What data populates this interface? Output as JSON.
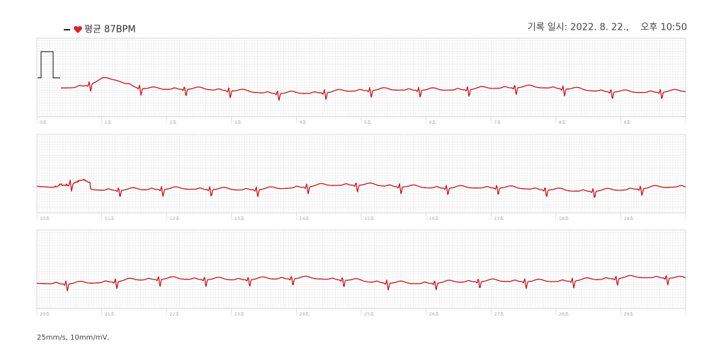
{
  "header": {
    "legend_label": "평균 87BPM",
    "record_time": "기록 일시: 2022. 8. 22.,    오후 10:50"
  },
  "strips": [
    {
      "time_labels": [
        "0초",
        "1초",
        "2초",
        "3초",
        "4초",
        "5초",
        "6초",
        "7초",
        "8초",
        "9초"
      ]
    },
    {
      "time_labels": [
        "10초",
        "11초",
        "12초",
        "13초",
        "14초",
        "15초",
        "16초",
        "17초",
        "18초",
        "19초"
      ]
    },
    {
      "time_labels": [
        "20초",
        "21초",
        "22초",
        "23초",
        "24초",
        "25초",
        "26초",
        "27초",
        "28초",
        "29초"
      ]
    }
  ],
  "footer": "25mm/s, 10mm/mV,"
}
